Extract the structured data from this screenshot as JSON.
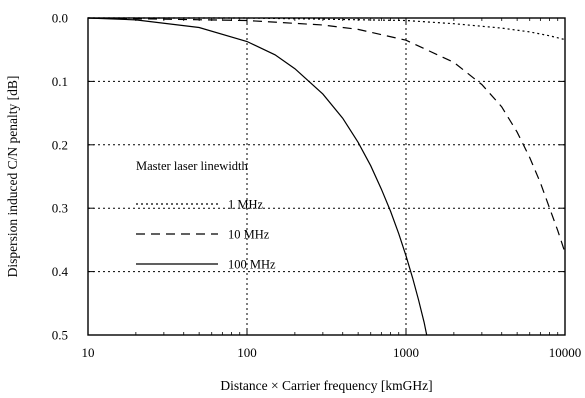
{
  "chart_data": {
    "type": "line",
    "xlabel": "Distance × Carrier frequency [kmGHz]",
    "ylabel": "Dispersion induced C/N penalty [dB]",
    "xscale": "log",
    "xlim": [
      10,
      10000
    ],
    "ylim": [
      0.0,
      0.5
    ],
    "y_inverted": true,
    "grid": true,
    "x_ticks": [
      10,
      100,
      1000,
      10000
    ],
    "x_tick_labels": [
      "10",
      "100",
      "1000",
      "10000"
    ],
    "y_ticks": [
      0.0,
      0.1,
      0.2,
      0.3,
      0.4,
      0.5
    ],
    "y_tick_labels": [
      "0.0",
      "0.1",
      "0.2",
      "0.3",
      "0.4",
      "0.5"
    ],
    "legend": {
      "title": "Master laser linewidth",
      "placement": "center-left"
    },
    "series": [
      {
        "name": "1 MHz",
        "style": "dotted",
        "x": [
          10,
          100,
          1000,
          2000,
          4000,
          6000,
          8000,
          10000
        ],
        "y": [
          0.0,
          0.0,
          0.004,
          0.009,
          0.016,
          0.022,
          0.028,
          0.034
        ]
      },
      {
        "name": "10 MHz",
        "style": "dashed",
        "x": [
          10,
          100,
          300,
          500,
          1000,
          2000,
          3000,
          4000,
          5000,
          6000,
          7000,
          8000,
          9000,
          10000
        ],
        "y": [
          0.0,
          0.004,
          0.011,
          0.018,
          0.035,
          0.07,
          0.105,
          0.14,
          0.18,
          0.22,
          0.26,
          0.3,
          0.335,
          0.37
        ]
      },
      {
        "name": "100 MHz",
        "style": "solid",
        "x": [
          10,
          20,
          50,
          100,
          150,
          200,
          300,
          400,
          500,
          600,
          700,
          800,
          900,
          1000,
          1100,
          1200,
          1300,
          1350
        ],
        "y": [
          0.0,
          0.003,
          0.015,
          0.037,
          0.058,
          0.08,
          0.12,
          0.158,
          0.196,
          0.233,
          0.27,
          0.305,
          0.34,
          0.375,
          0.41,
          0.445,
          0.48,
          0.5
        ]
      }
    ]
  }
}
